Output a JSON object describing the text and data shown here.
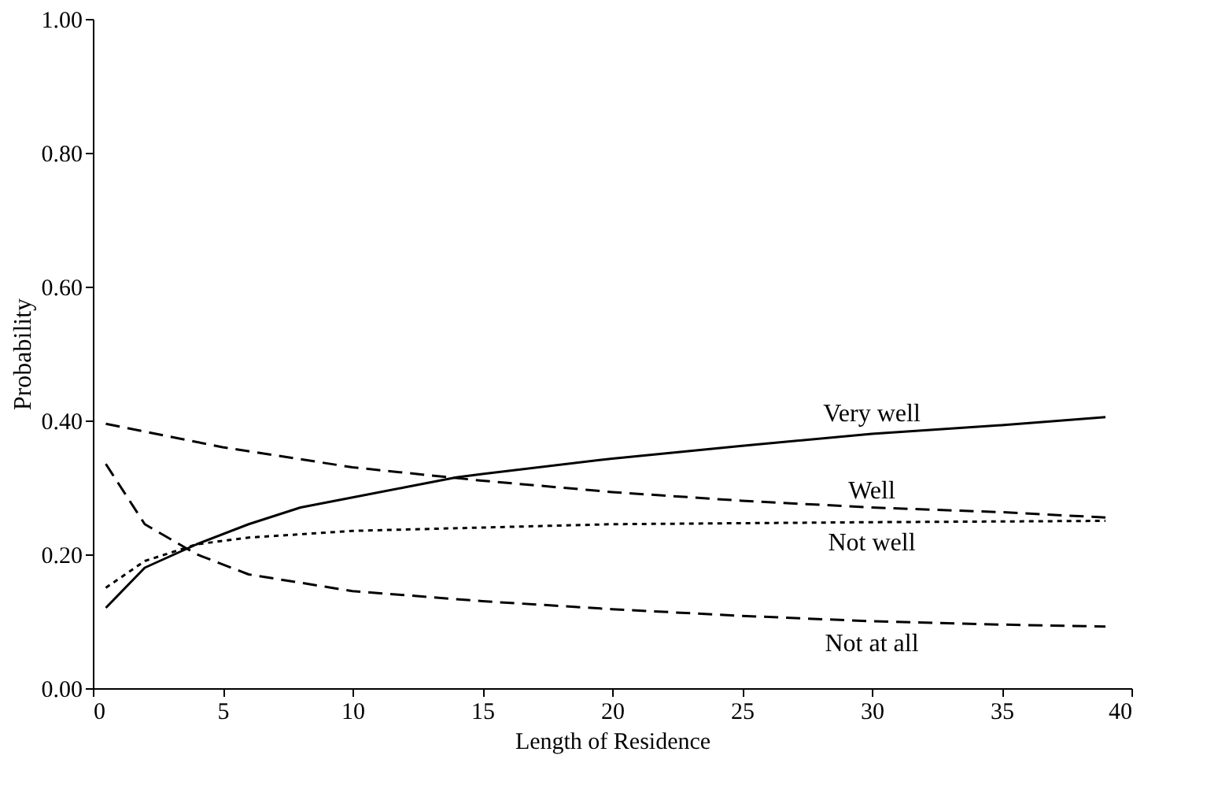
{
  "chart_data": {
    "type": "line",
    "xlabel": "Length of Residence",
    "ylabel": "Probability",
    "xlim": [
      0,
      40
    ],
    "xticks": [
      0,
      5,
      10,
      15,
      20,
      25,
      30,
      35,
      40
    ],
    "ylim": [
      0,
      1
    ],
    "yticks": [
      {
        "value": 0,
        "label": "0.00"
      },
      {
        "value": 0.2,
        "label": "0.20"
      },
      {
        "value": 0.4,
        "label": "0.40"
      },
      {
        "value": 0.6,
        "label": "0.60"
      },
      {
        "value": 0.8,
        "label": "0.80"
      },
      {
        "value": 1,
        "label": "1.00"
      }
    ],
    "grid": false,
    "marker": "none",
    "series": [
      {
        "name": "Very well",
        "color": "#000000",
        "line_style": "solid",
        "x": [
          0.5,
          2,
          4,
          6,
          8,
          10,
          12,
          14,
          15,
          20,
          25,
          30,
          35,
          39
        ],
        "values": [
          0.12,
          0.18,
          0.215,
          0.245,
          0.27,
          0.285,
          0.3,
          0.315,
          0.32,
          0.343,
          0.362,
          0.38,
          0.393,
          0.405
        ]
      },
      {
        "name": "Well",
        "color": "#000000",
        "line_style": "dashed",
        "x": [
          0.5,
          5,
          10,
          15,
          20,
          25,
          30,
          35,
          39
        ],
        "values": [
          0.395,
          0.36,
          0.33,
          0.31,
          0.293,
          0.28,
          0.27,
          0.263,
          0.255
        ]
      },
      {
        "name": "Not well",
        "color": "#000000",
        "line_style": "dotted",
        "x": [
          0.5,
          2,
          4,
          6,
          10,
          20,
          30,
          39
        ],
        "values": [
          0.15,
          0.19,
          0.215,
          0.225,
          0.235,
          0.245,
          0.248,
          0.25
        ]
      },
      {
        "name": "Not at all",
        "color": "#000000",
        "line_style": "dashed",
        "x": [
          0.5,
          2,
          4,
          6,
          10,
          15,
          20,
          25,
          30,
          35,
          39
        ],
        "values": [
          0.335,
          0.245,
          0.2,
          0.17,
          0.145,
          0.13,
          0.118,
          0.108,
          0.1,
          0.095,
          0.092
        ]
      }
    ]
  }
}
